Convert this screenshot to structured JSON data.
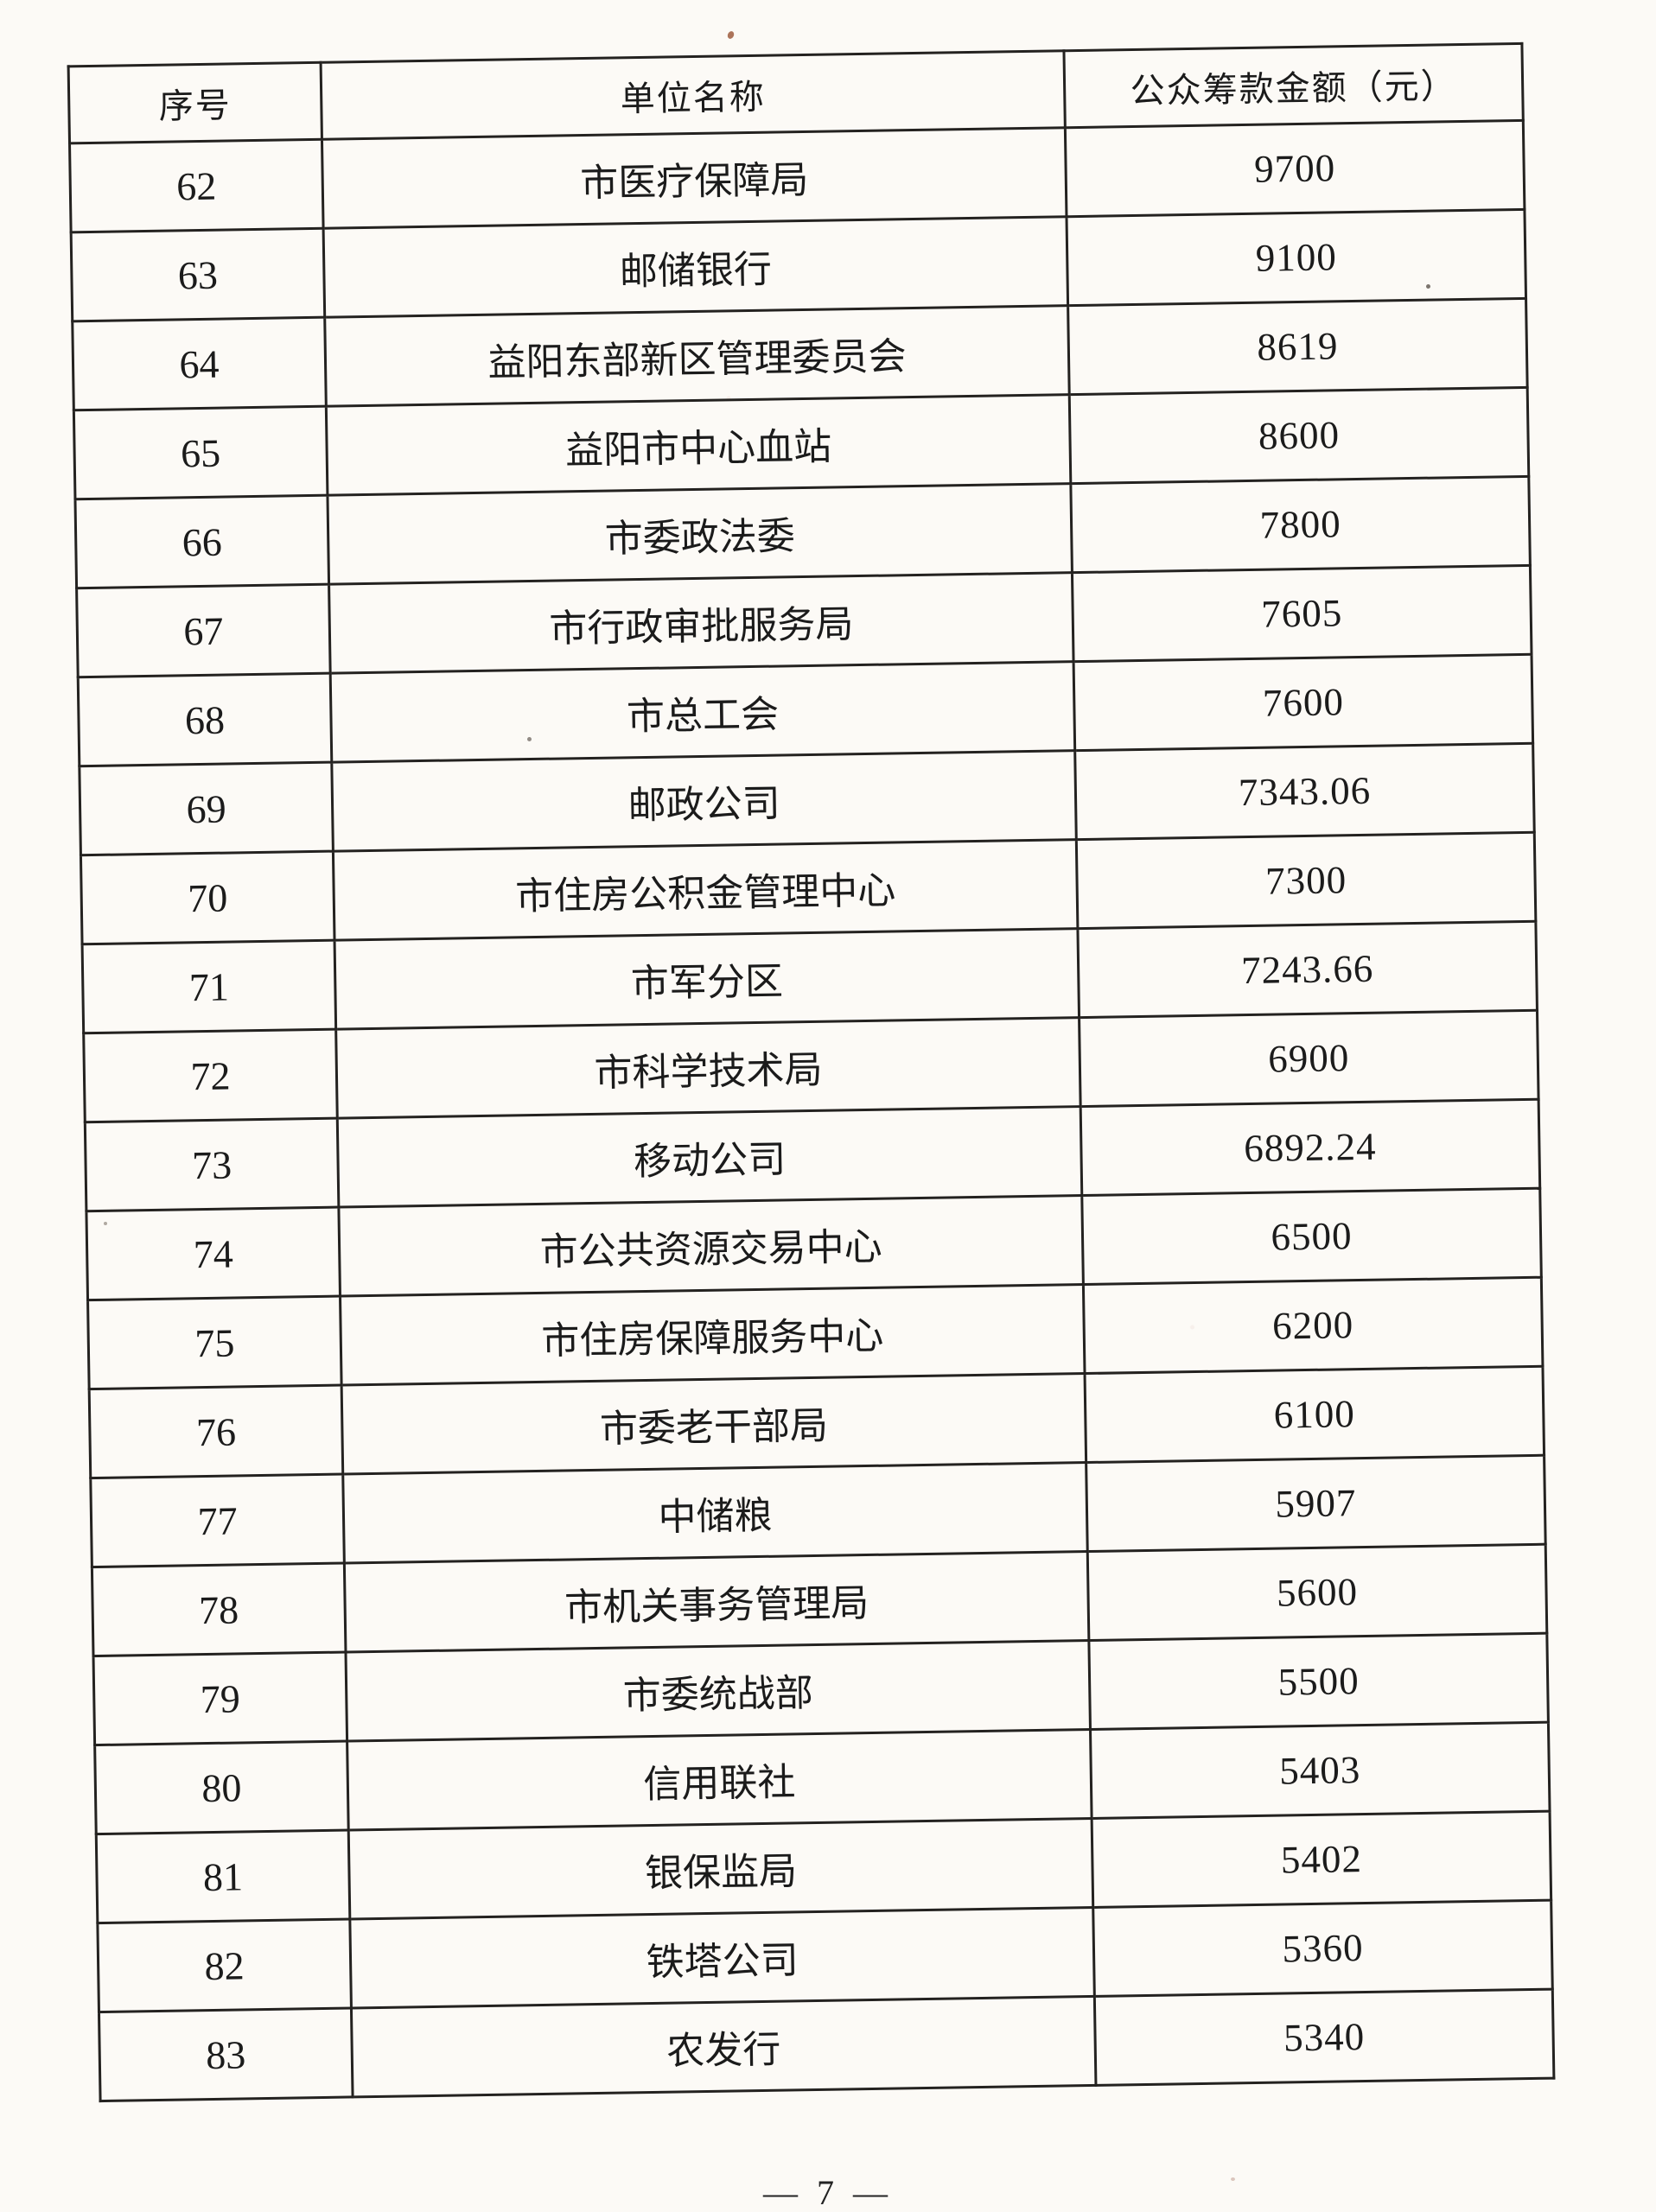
{
  "page": {
    "footer": "— 7 —"
  },
  "table": {
    "headers": [
      "序号",
      "单位名称",
      "公众筹款金额（元）"
    ],
    "rows": [
      {
        "no": "62",
        "name": "市医疗保障局",
        "amount": "9700"
      },
      {
        "no": "63",
        "name": "邮储银行",
        "amount": "9100"
      },
      {
        "no": "64",
        "name": "益阳东部新区管理委员会",
        "amount": "8619"
      },
      {
        "no": "65",
        "name": "益阳市中心血站",
        "amount": "8600"
      },
      {
        "no": "66",
        "name": "市委政法委",
        "amount": "7800"
      },
      {
        "no": "67",
        "name": "市行政审批服务局",
        "amount": "7605"
      },
      {
        "no": "68",
        "name": "市总工会",
        "amount": "7600"
      },
      {
        "no": "69",
        "name": "邮政公司",
        "amount": "7343.06"
      },
      {
        "no": "70",
        "name": "市住房公积金管理中心",
        "amount": "7300"
      },
      {
        "no": "71",
        "name": "市军分区",
        "amount": "7243.66"
      },
      {
        "no": "72",
        "name": "市科学技术局",
        "amount": "6900"
      },
      {
        "no": "73",
        "name": "移动公司",
        "amount": "6892.24"
      },
      {
        "no": "74",
        "name": "市公共资源交易中心",
        "amount": "6500"
      },
      {
        "no": "75",
        "name": "市住房保障服务中心",
        "amount": "6200"
      },
      {
        "no": "76",
        "name": "市委老干部局",
        "amount": "6100"
      },
      {
        "no": "77",
        "name": "中储粮",
        "amount": "5907"
      },
      {
        "no": "78",
        "name": "市机关事务管理局",
        "amount": "5600"
      },
      {
        "no": "79",
        "name": "市委统战部",
        "amount": "5500"
      },
      {
        "no": "80",
        "name": "信用联社",
        "amount": "5403"
      },
      {
        "no": "81",
        "name": "银保监局",
        "amount": "5402"
      },
      {
        "no": "82",
        "name": "铁塔公司",
        "amount": "5360"
      },
      {
        "no": "83",
        "name": "农发行",
        "amount": "5340"
      }
    ]
  }
}
